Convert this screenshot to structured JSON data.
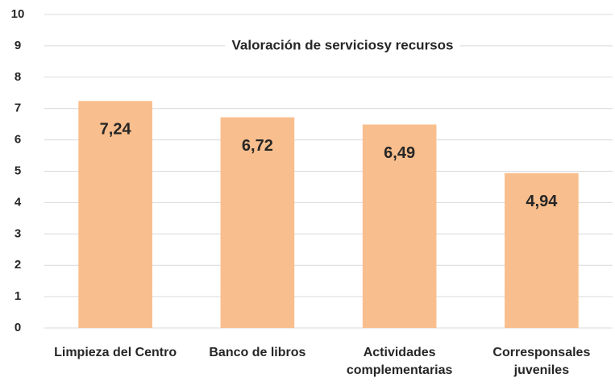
{
  "chart_data": {
    "type": "bar",
    "title": "Valoración de serviciosy recursos",
    "categories": [
      "Limpieza del Centro",
      "Banco de libros",
      "Actividades complementarias",
      "Corresponsales juveniles"
    ],
    "values": [
      7.24,
      6.72,
      6.49,
      4.94
    ],
    "value_labels": [
      "7,24",
      "6,72",
      "6,49",
      "4,94"
    ],
    "color": "#f9be8d",
    "ylim": [
      0,
      10
    ],
    "yticks": [
      0,
      1,
      2,
      3,
      4,
      5,
      6,
      7,
      8,
      9,
      10
    ],
    "grid": true
  }
}
